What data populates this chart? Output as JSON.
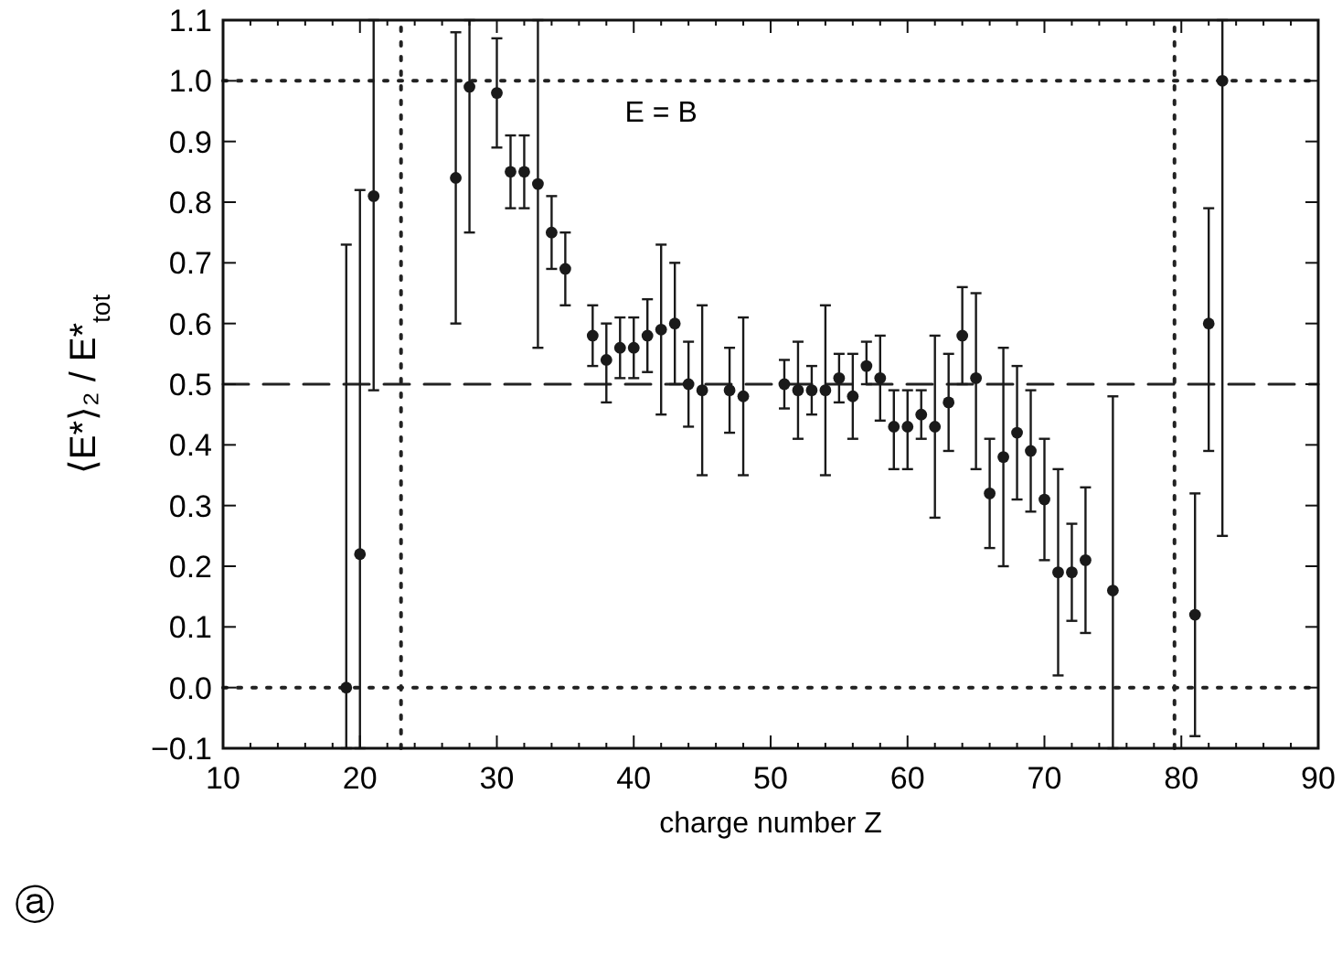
{
  "chart_data": {
    "type": "scatter",
    "xlabel": "charge number Z",
    "ylabel": "⟨E*⟩₂ / E*$_{tot}$",
    "x": [
      19,
      20,
      21,
      27,
      28,
      30,
      31,
      32,
      33,
      34,
      35,
      37,
      38,
      39,
      40,
      41,
      42,
      43,
      44,
      45,
      47,
      48,
      51,
      52,
      53,
      54,
      55,
      56,
      57,
      58,
      59,
      60,
      61,
      62,
      63,
      64,
      65,
      66,
      67,
      68,
      69,
      70,
      71,
      72,
      73,
      75,
      81,
      82,
      83
    ],
    "series": [
      {
        "color": "#1a1a1a",
        "values": [
          0,
          0.22,
          0.81,
          0.84,
          0.99,
          0.98,
          0.85,
          0.85,
          0.83,
          0.75,
          0.69,
          0.58,
          0.54,
          0.56,
          0.56,
          0.58,
          0.59,
          0.6,
          0.5,
          0.49,
          0.49,
          0.48,
          0.5,
          0.49,
          0.49,
          0.49,
          0.51,
          0.48,
          0.53,
          0.51,
          0.43,
          0.43,
          0.45,
          0.43,
          0.47,
          0.58,
          0.51,
          0.32,
          0.38,
          0.42,
          0.39,
          0.31,
          0.19,
          0.19,
          0.21,
          0.16,
          0.12,
          0.6,
          1.0
        ],
        "errors": [
          [
            -0.1,
            0.73
          ],
          [
            -0.1,
            0.82
          ],
          [
            0.49,
            1.1
          ],
          [
            0.6,
            1.08
          ],
          [
            0.75,
            1.1
          ],
          [
            0.89,
            1.07
          ],
          [
            0.79,
            0.91
          ],
          [
            0.79,
            0.91
          ],
          [
            0.56,
            1.1
          ],
          [
            0.69,
            0.81
          ],
          [
            0.63,
            0.75
          ],
          [
            0.53,
            0.63
          ],
          [
            0.47,
            0.6
          ],
          [
            0.51,
            0.61
          ],
          [
            0.51,
            0.61
          ],
          [
            0.52,
            0.64
          ],
          [
            0.45,
            0.73
          ],
          [
            0.5,
            0.7
          ],
          [
            0.43,
            0.57
          ],
          [
            0.35,
            0.63
          ],
          [
            0.42,
            0.56
          ],
          [
            0.35,
            0.61
          ],
          [
            0.46,
            0.54
          ],
          [
            0.41,
            0.57
          ],
          [
            0.45,
            0.53
          ],
          [
            0.35,
            0.63
          ],
          [
            0.47,
            0.55
          ],
          [
            0.41,
            0.55
          ],
          [
            0.5,
            0.57
          ],
          [
            0.44,
            0.58
          ],
          [
            0.36,
            0.49
          ],
          [
            0.36,
            0.49
          ],
          [
            0.41,
            0.49
          ],
          [
            0.28,
            0.58
          ],
          [
            0.39,
            0.55
          ],
          [
            0.5,
            0.66
          ],
          [
            0.36,
            0.65
          ],
          [
            0.23,
            0.41
          ],
          [
            0.2,
            0.56
          ],
          [
            0.31,
            0.53
          ],
          [
            0.29,
            0.49
          ],
          [
            0.21,
            0.41
          ],
          [
            0.02,
            0.36
          ],
          [
            0.11,
            0.27
          ],
          [
            0.09,
            0.33
          ],
          [
            -0.1,
            0.48
          ],
          [
            -0.08,
            0.32
          ],
          [
            0.39,
            0.79
          ],
          [
            0.25,
            1.1
          ]
        ]
      }
    ],
    "xlim": [
      10,
      90
    ],
    "xticks": [
      10,
      20,
      30,
      40,
      50,
      60,
      70,
      80,
      90
    ],
    "ylim": [
      -0.1,
      1.1
    ],
    "yticks": [
      {
        "value": -0.1,
        "label": "−0.1"
      },
      {
        "value": 0,
        "label": "0.0"
      },
      0.1,
      0.2,
      0.3,
      0.4,
      0.5,
      0.6,
      0.7,
      0.8,
      0.9,
      {
        "value": 1,
        "label": "1.0"
      },
      1.1
    ],
    "marker": "circle",
    "grid": false,
    "ref_lines": [
      {
        "axis": "y",
        "value": 0.5,
        "line_style": "dashed"
      },
      {
        "axis": "y",
        "value": 0,
        "line_style": "dotted"
      },
      {
        "axis": "y",
        "value": 1,
        "line_style": "dotted"
      },
      {
        "axis": "x",
        "value": 23,
        "line_style": "dotted"
      },
      {
        "axis": "x",
        "value": 79.5,
        "line_style": "dotted"
      }
    ],
    "annotations": [
      "E = B",
      "ⓐ"
    ]
  }
}
